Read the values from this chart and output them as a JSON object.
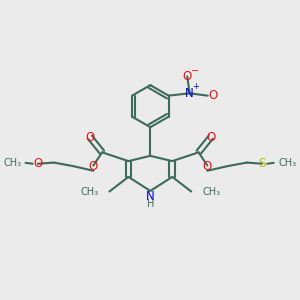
{
  "bg_color": "#EBEBEB",
  "bond_color": "#3D6B5A",
  "o_color": "#EE1111",
  "n_color": "#0000CC",
  "s_color": "#BBBB00",
  "line_width": 1.5,
  "font_size": 8.5,
  "fig_w": 3.0,
  "fig_h": 3.0,
  "dpi": 100,
  "xlim": [
    0,
    10
  ],
  "ylim": [
    0,
    10
  ]
}
